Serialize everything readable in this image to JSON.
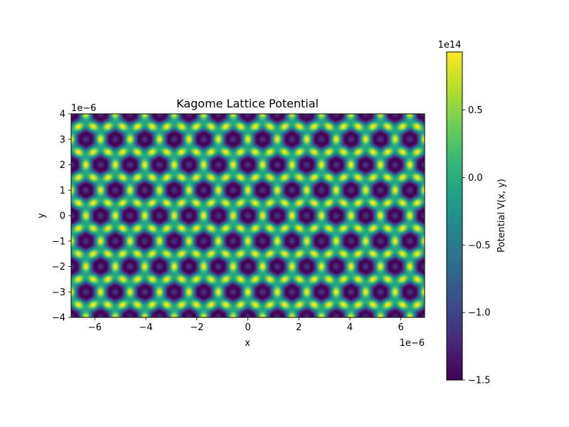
{
  "chart_data": {
    "type": "heatmap",
    "title": "Kagome Lattice Potential",
    "xlabel": "x",
    "ylabel": "y",
    "x_offset_text": "1e−6",
    "y_offset_text": "1e−6",
    "xlim": [
      -6.93,
      6.93
    ],
    "ylim": [
      -4,
      4
    ],
    "x_ticks": [
      -6,
      -4,
      -2,
      0,
      2,
      4,
      6
    ],
    "x_tick_labels": [
      "−6",
      "−4",
      "−2",
      "0",
      "2",
      "4",
      "6"
    ],
    "y_ticks": [
      -4,
      -3,
      -2,
      -1,
      0,
      1,
      2,
      3,
      4
    ],
    "y_tick_labels": [
      "−4",
      "−3",
      "−2",
      "−1",
      "0",
      "1",
      "2",
      "3",
      "4"
    ],
    "colormap": "viridis",
    "colorbar": {
      "label": "Potential V(x, y)",
      "offset_text": "1e14",
      "range": [
        -1.5,
        0.93
      ],
      "ticks": [
        0.5,
        0.0,
        -0.5,
        -1.0,
        -1.5
      ],
      "tick_labels": [
        "0.5",
        "0.0",
        "−0.5",
        "−1.0",
        "−1.5"
      ]
    },
    "grid": false,
    "lattice_period_x": 1.155
  },
  "colors": {
    "viridis": [
      "#440154",
      "#482878",
      "#3e4989",
      "#31688e",
      "#26828e",
      "#1f9e89",
      "#35b779",
      "#6ece58",
      "#b5de2b",
      "#fde725"
    ]
  }
}
